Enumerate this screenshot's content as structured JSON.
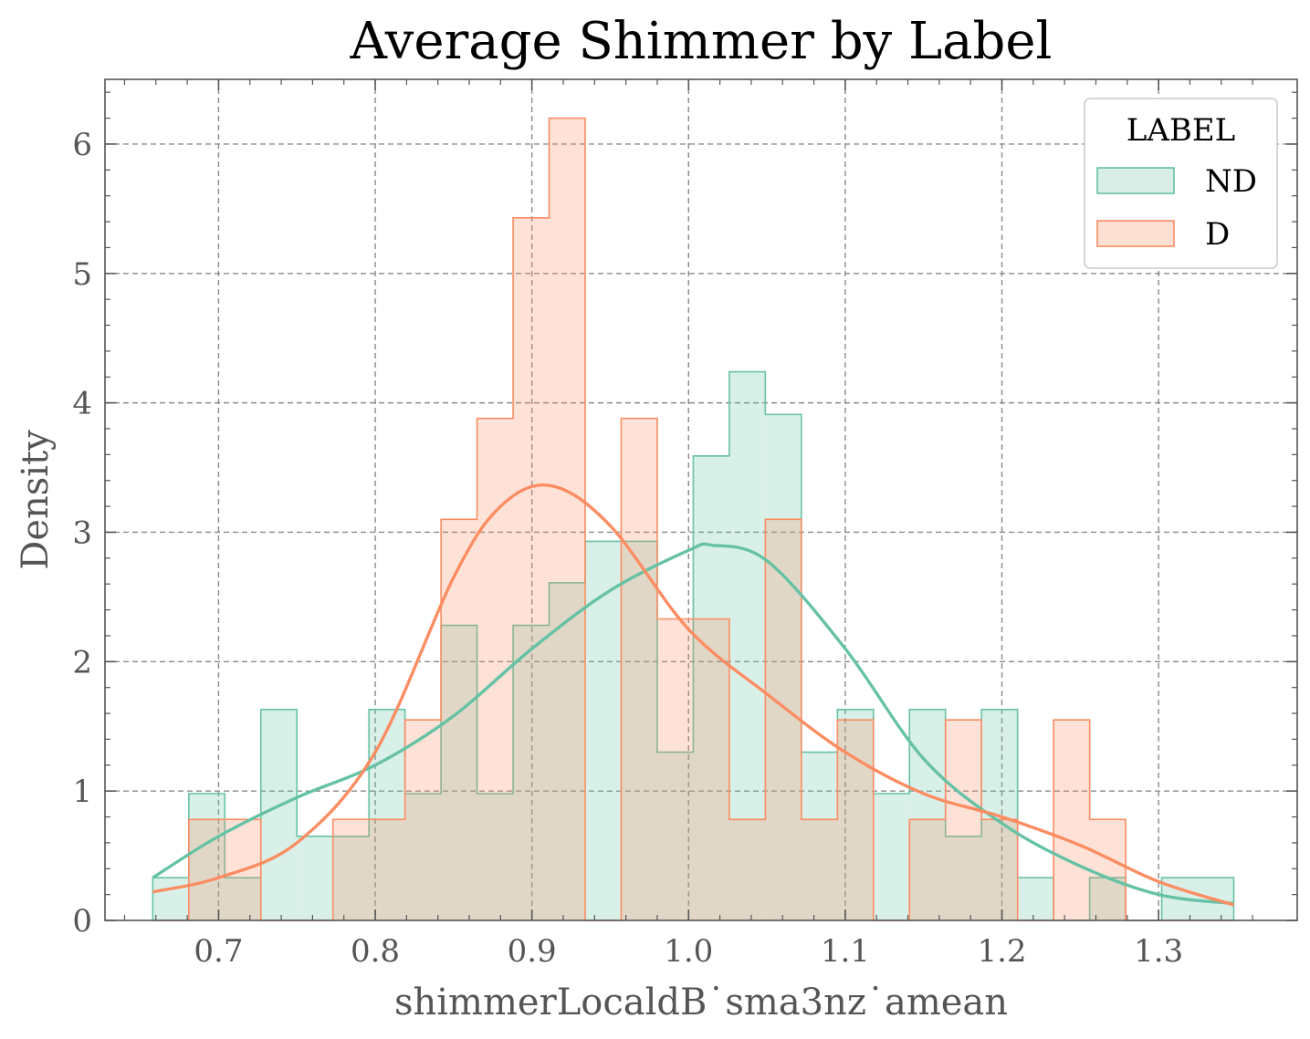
{
  "chart_data": {
    "type": "histogram+kde",
    "title": "Average Shimmer by Label",
    "xlabel": "shimmerLocaldB˙sma3nz˙amean",
    "ylabel": "Density",
    "xlim": [
      0.6275,
      1.3885
    ],
    "ylim": [
      0,
      6.5
    ],
    "xticks": [
      0.7,
      0.8,
      0.9,
      1.0,
      1.1,
      1.2,
      1.3
    ],
    "xtick_labels": [
      "0.7",
      "0.8",
      "0.9",
      "1.0",
      "1.1",
      "1.2",
      "1.3"
    ],
    "yticks": [
      0,
      1,
      2,
      3,
      4,
      5,
      6
    ],
    "ytick_labels": [
      "0",
      "1",
      "2",
      "3",
      "4",
      "5",
      "6"
    ],
    "grid": true,
    "legend": {
      "title": "LABEL",
      "placement": "top-right"
    },
    "bins": {
      "start": 0.658,
      "width": 0.023,
      "count": 30
    },
    "series": [
      {
        "name": "ND",
        "color": "#66c2a5",
        "fill": "#d8eee6",
        "hist": [
          0.33,
          0.98,
          0.33,
          1.63,
          0.65,
          0.65,
          1.63,
          0.98,
          2.28,
          0.98,
          2.28,
          2.61,
          2.93,
          2.93,
          1.3,
          3.59,
          4.24,
          3.91,
          1.3,
          1.63,
          0.98,
          1.63,
          0.65,
          1.63,
          0.33,
          0.0,
          0.33,
          0.0,
          0.33,
          0.33
        ],
        "kde_x": [
          0.658,
          0.7,
          0.75,
          0.8,
          0.85,
          0.9,
          0.95,
          1.0,
          1.015,
          1.05,
          1.1,
          1.15,
          1.2,
          1.25,
          1.3,
          1.348
        ],
        "kde_y": [
          0.33,
          0.65,
          0.95,
          1.2,
          1.58,
          2.1,
          2.55,
          2.86,
          2.9,
          2.78,
          2.1,
          1.25,
          0.75,
          0.42,
          0.2,
          0.13
        ]
      },
      {
        "name": "D",
        "color": "#fc8d62",
        "fill": "#fddfd4",
        "hist": [
          0.0,
          0.78,
          0.78,
          0.0,
          0.0,
          0.78,
          0.78,
          1.55,
          3.1,
          3.88,
          5.43,
          6.2,
          0.0,
          3.88,
          2.33,
          2.33,
          0.78,
          3.1,
          0.78,
          1.55,
          0.0,
          0.78,
          1.55,
          0.78,
          0.0,
          1.55,
          0.78,
          0.0,
          0.0,
          0.0
        ],
        "kde_x": [
          0.658,
          0.7,
          0.75,
          0.8,
          0.85,
          0.88,
          0.912,
          0.95,
          1.0,
          1.05,
          1.1,
          1.15,
          1.2,
          1.25,
          1.3,
          1.348
        ],
        "kde_y": [
          0.22,
          0.33,
          0.6,
          1.3,
          2.65,
          3.2,
          3.36,
          3.05,
          2.25,
          1.75,
          1.3,
          0.98,
          0.8,
          0.58,
          0.3,
          0.12
        ]
      }
    ]
  }
}
